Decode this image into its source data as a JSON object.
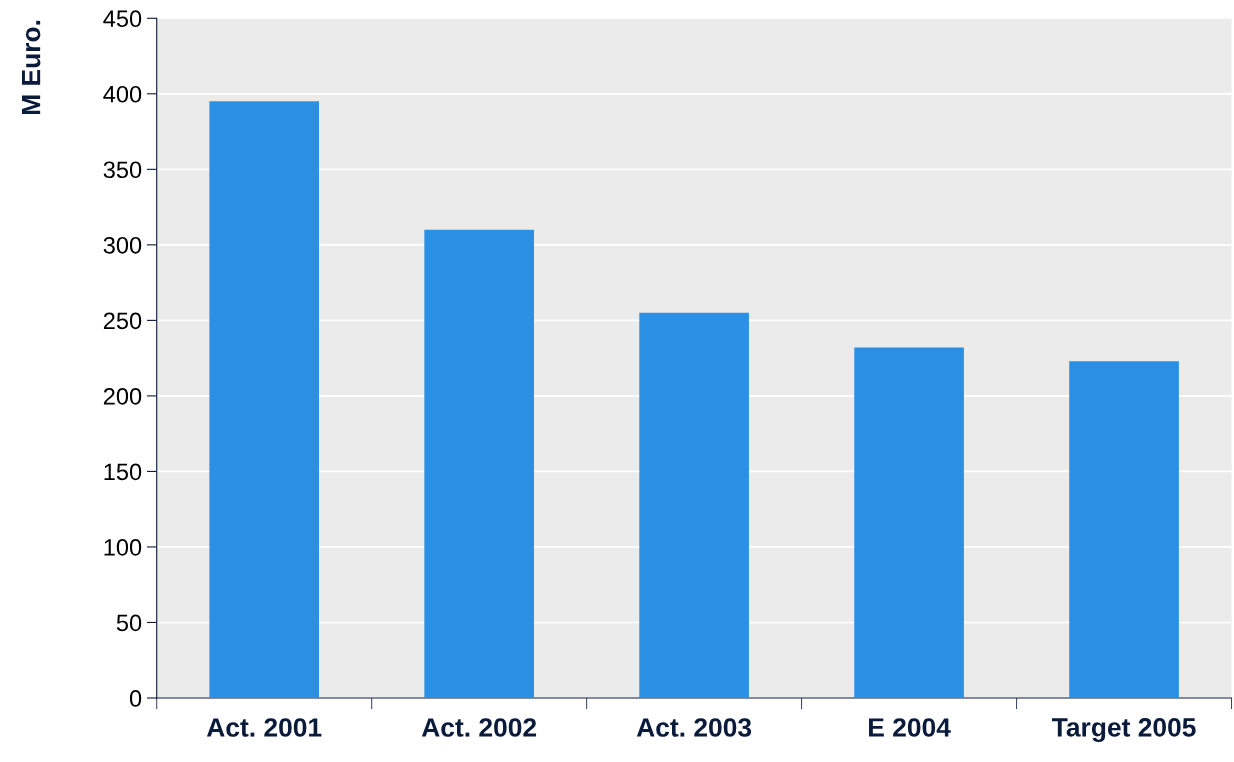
{
  "chart_data": {
    "type": "bar",
    "ylabel": "M Euro.",
    "categories": [
      "Act. 2001",
      "Act. 2002",
      "Act. 2003",
      "E 2004",
      "Target 2005"
    ],
    "values": [
      395,
      310,
      255,
      232,
      223
    ],
    "color": "#2b8fe3",
    "ylim": [
      0,
      450
    ],
    "yticks": [
      0,
      50,
      100,
      150,
      200,
      250,
      300,
      350,
      400,
      450
    ],
    "grid": "y"
  }
}
